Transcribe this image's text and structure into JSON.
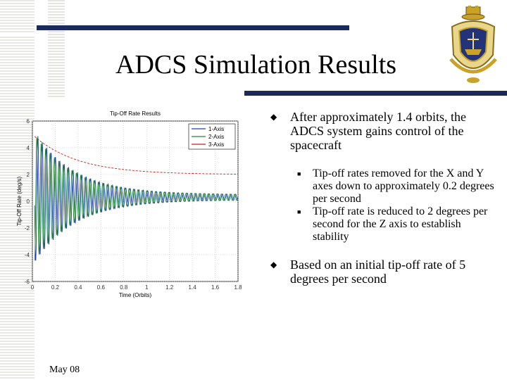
{
  "slide": {
    "title": "ADCS Simulation Results",
    "footer": "May 08",
    "crest_icon": "naval-academy-crest",
    "bullets": [
      {
        "text": "After approximately 1.4 orbits, the ADCS system gains control of the spacecraft",
        "sub": [
          "Tip-off rates removed for the X and Y axes down to approximately 0.2 degrees per second",
          "Tip-off rate is reduced to 2 degrees per second for the Z axis to establish stability"
        ]
      },
      {
        "text": "Based on an initial tip-off rate of 5 degrees per second",
        "sub": []
      }
    ],
    "colors": {
      "rule": "#1a2a5a",
      "stripe": "#e9e9e3"
    }
  },
  "chart_data": {
    "type": "line",
    "title": "Tip-Off Rate Results",
    "xlabel": "Time (Orbits)",
    "ylabel": "Tip-Off Rate (deg/s)",
    "xticks": [
      "0",
      "0.2",
      "0.4",
      "0.6",
      "0.8",
      "1",
      "1.2",
      "1.4",
      "1.6",
      "1.8"
    ],
    "yticks": [
      "6",
      "4",
      "2",
      "0",
      "-2",
      "-4",
      "-6"
    ],
    "xlim": [
      0,
      1.8
    ],
    "ylim": [
      -6,
      6
    ],
    "grid": true,
    "legend": "top-right",
    "series": [
      {
        "name": "1-Axis",
        "color": "#1f3fbf",
        "kind": "osc",
        "amp0": 5.2,
        "decay": 2.8,
        "floor": 0.2,
        "freq": 26,
        "phase": 0.0,
        "mean": 0.3
      },
      {
        "name": "2-Axis",
        "color": "#1f8a2a",
        "kind": "osc",
        "amp0": 5.0,
        "decay": 2.8,
        "floor": 0.2,
        "freq": 26,
        "phase": 1.5,
        "mean": 0.3
      },
      {
        "name": "3-Axis",
        "color": "#c81e1e",
        "kind": "decay",
        "start": 5.0,
        "end": 2.0,
        "decay": 2.6
      }
    ]
  }
}
